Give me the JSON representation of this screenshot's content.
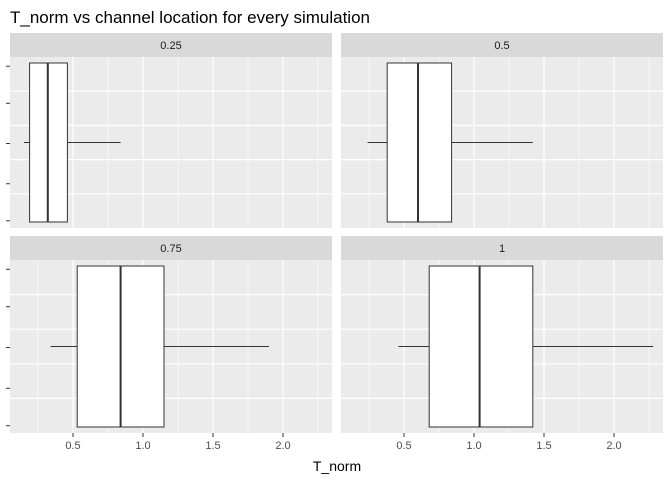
{
  "chart_data": {
    "type": "boxplot",
    "title": "T_norm vs channel location for every simulation",
    "xlabel": "T_norm",
    "ylabel": "",
    "xlim": [
      0.05,
      2.35
    ],
    "x_ticks": [
      "0.5",
      "1.0",
      "1.5",
      "2.0"
    ],
    "x_tick_values": [
      0.5,
      1.0,
      1.5,
      2.0
    ],
    "facet_layout": "2x2",
    "grid": true,
    "facets": [
      {
        "label": "0.25",
        "whisker_low": 0.15,
        "q1": 0.19,
        "median": 0.32,
        "q3": 0.46,
        "whisker_high": 0.84
      },
      {
        "label": "0.5",
        "whisker_low": 0.24,
        "q1": 0.38,
        "median": 0.6,
        "q3": 0.84,
        "whisker_high": 1.42
      },
      {
        "label": "0.75",
        "whisker_low": 0.34,
        "q1": 0.53,
        "median": 0.84,
        "q3": 1.15,
        "whisker_high": 1.9
      },
      {
        "label": "1",
        "whisker_low": 0.46,
        "q1": 0.68,
        "median": 1.04,
        "q3": 1.42,
        "whisker_high": 2.28
      }
    ],
    "colors": {
      "panel_bg": "#EBEBEB",
      "strip_bg": "#D9D9D9",
      "grid": "#FFFFFF",
      "box_fill": "#FFFFFF",
      "box_stroke": "#333333"
    }
  }
}
